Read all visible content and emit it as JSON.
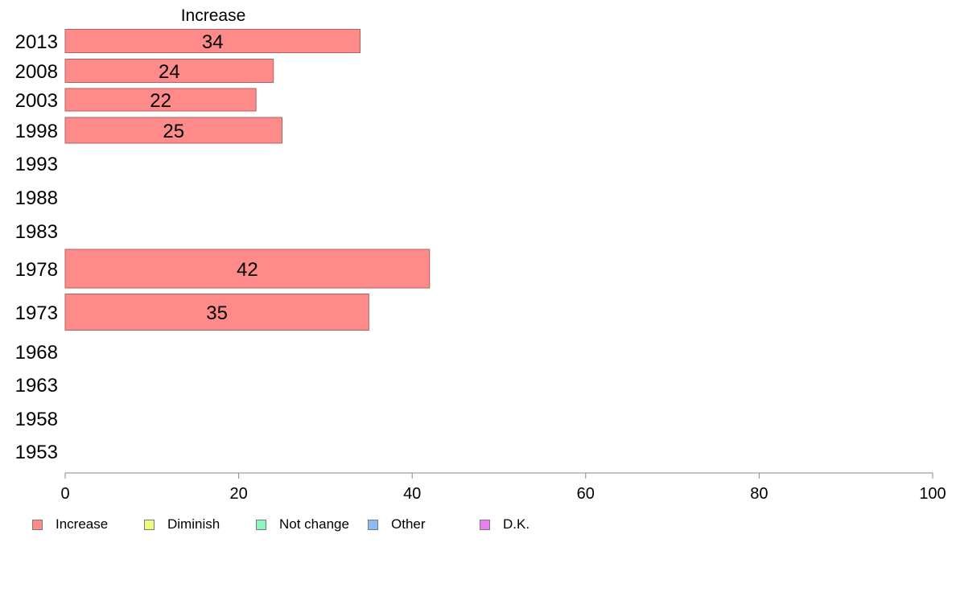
{
  "chart_data": {
    "type": "bar",
    "orientation": "horizontal",
    "panel_title": "Increase",
    "categories": [
      "2013",
      "2008",
      "2003",
      "1998",
      "1993",
      "1988",
      "1983",
      "1978",
      "1973",
      "1968",
      "1963",
      "1958",
      "1953"
    ],
    "series": [
      {
        "name": "Increase",
        "values": [
          34,
          24,
          22,
          25,
          null,
          null,
          null,
          42,
          35,
          null,
          null,
          null,
          null
        ]
      }
    ],
    "xlim": [
      0,
      100
    ],
    "xticks": [
      "0",
      "20",
      "40",
      "60",
      "80",
      "100"
    ],
    "grid": false,
    "legend_position": "bottom-left"
  },
  "legend": [
    {
      "label": "Increase",
      "color": "#ff8a8a"
    },
    {
      "label": "Diminish",
      "color": "#eefa7e"
    },
    {
      "label": "Not change",
      "color": "#8cf7bc"
    },
    {
      "label": "Other",
      "color": "#8cbaf7"
    },
    {
      "label": "D.K.",
      "color": "#ec7ef2"
    }
  ],
  "colors": {
    "bar": "#ff8a8a",
    "bar_border": "#b06060",
    "axis": "#888888"
  }
}
